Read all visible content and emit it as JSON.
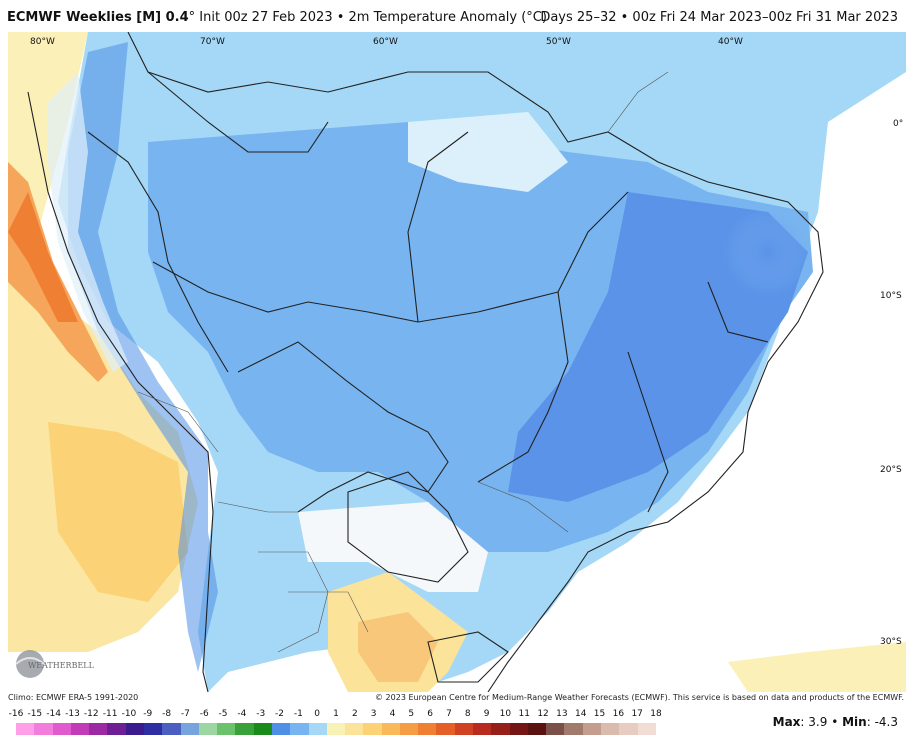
{
  "header": {
    "title_bold": "ECMWF Weeklies [M] 0.4",
    "title_rest": "° Init 00z 27 Feb 2023 • 2m Temperature Anomaly (°C)",
    "valid": "Days 25–32 • 00z Fri 24 Mar 2023–00z Fri 31 Mar 2023"
  },
  "map": {
    "lon_labels": [
      "80°W",
      "70°W",
      "60°W",
      "50°W",
      "40°W"
    ],
    "lat_labels": [
      "0°",
      "10°S",
      "20°S",
      "30°S"
    ],
    "logo": "WEATHERBELL"
  },
  "footer": {
    "climo": "Climo: ECMWF ERA-5 1991-2020",
    "copyright": "© 2023 European Centre for Medium-Range Weather Forecasts (ECMWF). This service is based on data and products of the ECMWF."
  },
  "colorbar": {
    "ticks": [
      "-16",
      "-15",
      "-14",
      "-13",
      "-12",
      "-11",
      "-10",
      "-9",
      "-8",
      "-7",
      "-6",
      "-5",
      "-4",
      "-3",
      "-2",
      "-1",
      "0",
      "1",
      "2",
      "3",
      "4",
      "5",
      "6",
      "7",
      "8",
      "9",
      "10",
      "11",
      "12",
      "13",
      "14",
      "15",
      "16",
      "17",
      "18"
    ],
    "colors": [
      "#ff9fe8",
      "#f27ddc",
      "#e05ccc",
      "#c23bb7",
      "#9c2aa3",
      "#6f1f94",
      "#3a1c8f",
      "#2c2ea1",
      "#4a5fc0",
      "#78a4dd",
      "#9ed6a3",
      "#6bc26b",
      "#3aa03a",
      "#1a8a1a",
      "#4f8fe6",
      "#78b4f0",
      "#a5d8f6",
      "#f8f2b6",
      "#fbe49a",
      "#fcd277",
      "#f9b95a",
      "#f59d44",
      "#ef7f33",
      "#e55f28",
      "#d14222",
      "#b72c1f",
      "#962019",
      "#741714",
      "#5a1311",
      "#7a5048",
      "#a07a6c",
      "#c39e8e",
      "#d9bcae",
      "#e7cdc1",
      "#f2ddd4"
    ]
  },
  "stats": {
    "max_label": "Max",
    "max_value": "3.9",
    "sep": "•",
    "min_label": "Min",
    "min_value": "-4.3"
  }
}
